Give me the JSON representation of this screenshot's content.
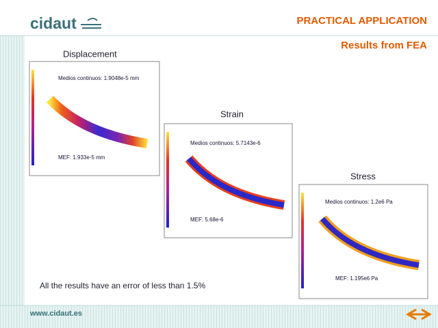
{
  "header": {
    "logo": "cidaut",
    "title": "PRACTICAL APPLICATION",
    "subtitle": "Results from FEA"
  },
  "panels": [
    {
      "label": "Displacement",
      "continuous": "Medios continuos: 1.9048e-5 mm",
      "mef": "MEF: 1.933e-5 mm"
    },
    {
      "label": "Strain",
      "continuous": "Medios continuos: 5.7143e-6",
      "mef": "MEF: 5.68e-6"
    },
    {
      "label": "Stress",
      "continuous": "Medios continuos: 1.2e6 Pa",
      "mef": "MEF: 1.195e6 Pa"
    }
  ],
  "note": "All the results have an error of less than 1.5%",
  "footer": {
    "url": "www.cidaut.es"
  }
}
